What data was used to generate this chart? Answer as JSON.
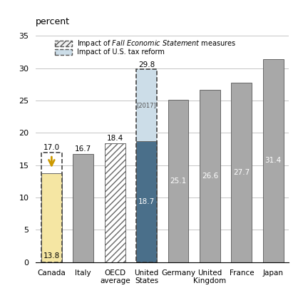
{
  "categories": [
    "Canada",
    "Italy",
    "OECD\naverage",
    "United\nStates",
    "Germany",
    "United\nKingdom",
    "France",
    "Japan"
  ],
  "values": [
    13.8,
    16.7,
    18.4,
    18.7,
    25.1,
    26.6,
    27.7,
    31.4
  ],
  "bar_colors": [
    "#f5e6a3",
    "#a8a8a8",
    "#ffffff",
    "#4a6f8a",
    "#a8a8a8",
    "#a8a8a8",
    "#a8a8a8",
    "#a8a8a8"
  ],
  "canada_prev": 17.0,
  "us_prev": 29.8,
  "us_dashed_color": "#ccdde8",
  "ylabel_top": "percent",
  "ylim": [
    0,
    35
  ],
  "yticks": [
    0,
    5,
    10,
    15,
    20,
    25,
    30,
    35
  ],
  "legend2_text": "Impact of U.S. tax reform",
  "bar_edgecolor": "#666666",
  "grid_color": "#bbbbbb",
  "bg_color": "#ffffff",
  "arrow_color": "#cc9900",
  "canada_label_color": "black",
  "italy_label_color": "black",
  "oecd_label_color": "black",
  "us_label_color": "white",
  "other_label_color": "white"
}
